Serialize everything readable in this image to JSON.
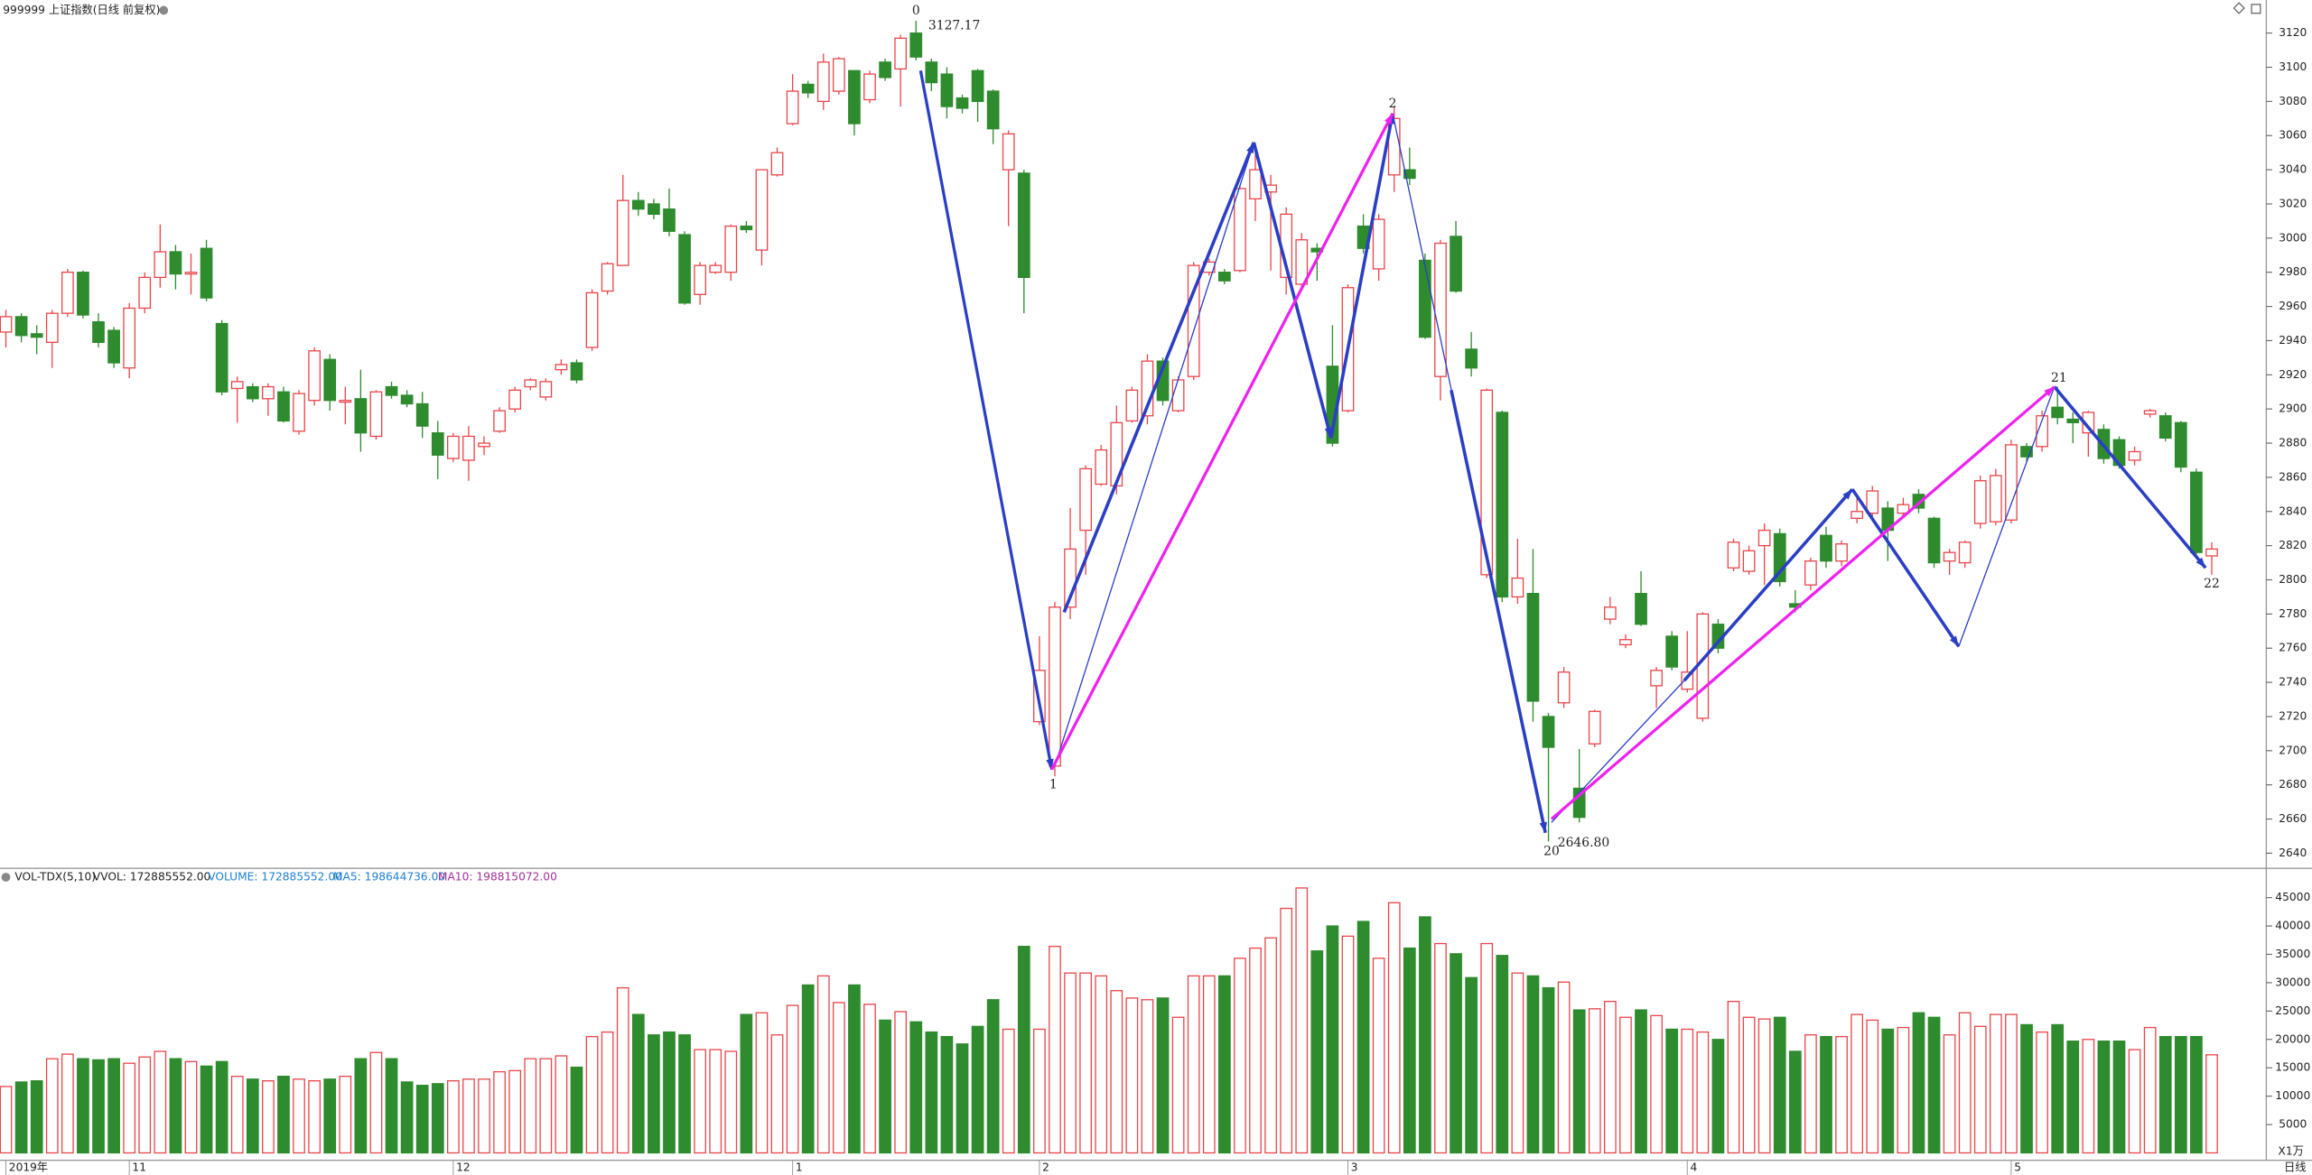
{
  "header": {
    "title": "999999 上证指数(日线 前复权)",
    "period": "日线"
  },
  "chart_data": [
    {
      "type": "candlestick",
      "up_color": "#e8454a",
      "down_color": "#2e8b2e",
      "grid": false,
      "ylim": [
        2632,
        3129
      ],
      "yticks": [
        2640,
        2660,
        2680,
        2700,
        2720,
        2740,
        2760,
        2780,
        2800,
        2820,
        2840,
        2860,
        2880,
        2900,
        2920,
        2940,
        2960,
        2980,
        3000,
        3020,
        3040,
        3060,
        3080,
        3100,
        3120
      ],
      "categories": [
        "2019年",
        null,
        null,
        null,
        null,
        null,
        null,
        null,
        "11",
        null,
        null,
        null,
        null,
        null,
        null,
        null,
        null,
        null,
        null,
        null,
        null,
        null,
        null,
        null,
        null,
        null,
        null,
        null,
        null,
        "12",
        null,
        null,
        null,
        null,
        null,
        null,
        null,
        null,
        null,
        null,
        null,
        null,
        null,
        null,
        null,
        null,
        null,
        null,
        null,
        null,
        null,
        "1",
        null,
        null,
        null,
        null,
        null,
        null,
        null,
        null,
        null,
        null,
        null,
        null,
        null,
        null,
        null,
        "2",
        null,
        null,
        null,
        null,
        null,
        null,
        null,
        null,
        null,
        null,
        null,
        null,
        null,
        null,
        null,
        null,
        null,
        null,
        null,
        "3",
        null,
        null,
        null,
        null,
        null,
        null,
        null,
        null,
        null,
        null,
        null,
        null,
        null,
        null,
        null,
        null,
        null,
        null,
        null,
        null,
        null,
        "4",
        null,
        null,
        null,
        null,
        null,
        null,
        null,
        null,
        null,
        null,
        null,
        null,
        null,
        null,
        null,
        null,
        null,
        null,
        null,
        null,
        "5",
        null,
        null,
        null,
        null,
        null,
        null,
        null,
        null,
        null,
        null,
        null,
        null,
        null
      ],
      "open": [
        2945,
        2954,
        2944,
        2939,
        2956,
        2980,
        2951,
        2946,
        2924,
        2959,
        2977,
        2992,
        2979,
        2994,
        2950,
        2912,
        2913,
        2906,
        2910,
        2887,
        2905,
        2929,
        2904,
        2906,
        2884,
        2913,
        2908,
        2903,
        2886,
        2871,
        2870,
        2878,
        2887,
        2900,
        2913,
        2907,
        2923,
        2927,
        2936,
        2969,
        2984,
        3022,
        3020,
        3017,
        3002,
        2967,
        2980,
        2980,
        3007,
        2993,
        3037,
        3067,
        3090,
        3080,
        3086,
        3098,
        3081,
        3103,
        3099,
        3120,
        3103,
        3096,
        3082,
        3098,
        3086,
        3040,
        3038,
        2717,
        2691,
        2784,
        2829,
        2856,
        2855,
        2893,
        2896,
        2928,
        2899,
        2919,
        2980,
        2980,
        2981,
        3023,
        3027,
        2977,
        2973,
        2994,
        2925,
        2899,
        3007,
        2982,
        3037,
        3040,
        2987,
        2919,
        3001,
        2935,
        2803,
        2898,
        2790,
        2792,
        2720,
        2728,
        2678,
        2704,
        2777,
        2762,
        2792,
        2738,
        2767,
        2736,
        2719,
        2774,
        2807,
        2805,
        2820,
        2827,
        2786,
        2797,
        2826,
        2811,
        2836,
        2839,
        2842,
        2839,
        2850,
        2836,
        2811,
        2810,
        2833,
        2834,
        2835,
        2878,
        2878,
        2901,
        2894,
        2886,
        2888,
        2882,
        2870,
        2897,
        2896,
        2892,
        2863,
        2814
      ],
      "high": [
        2958,
        2956,
        2949,
        2958,
        2982,
        2981,
        2956,
        2948,
        2962,
        2980,
        3008,
        2996,
        2991,
        2999,
        2952,
        2919,
        2915,
        2915,
        2913,
        2911,
        2936,
        2932,
        2913,
        2923,
        2911,
        2916,
        2911,
        2910,
        2893,
        2886,
        2890,
        2884,
        2901,
        2913,
        2918,
        2918,
        2929,
        2929,
        2970,
        2986,
        3037,
        3027,
        3023,
        3029,
        3004,
        2986,
        2986,
        3008,
        3010,
        3040,
        3053,
        3096,
        3092,
        3108,
        3106,
        3098,
        3098,
        3105,
        3119,
        3127.17,
        3105,
        3100,
        3084,
        3099,
        3087,
        3063,
        3040,
        2767,
        2787,
        2842,
        2867,
        2879,
        2902,
        2913,
        2932,
        2930,
        2919,
        2986,
        2988,
        2982,
        3031,
        3055,
        3037,
        3018,
        3003,
        2997,
        2949,
        2973,
        3014,
        3014,
        3077,
        3053,
        2991,
        2999,
        3010,
        2945,
        2912,
        2899,
        2824,
        2818,
        2722,
        2749,
        2701,
        2724,
        2790,
        2768,
        2805,
        2749,
        2770,
        2770,
        2781,
        2777,
        2824,
        2820,
        2833,
        2830,
        2794,
        2813,
        2831,
        2823,
        2850,
        2855,
        2846,
        2848,
        2853,
        2837,
        2818,
        2823,
        2861,
        2865,
        2882,
        2880,
        2899,
        2913,
        2898,
        2899,
        2891,
        2884,
        2878,
        2900,
        2898,
        2893,
        2865,
        2822
      ],
      "low": [
        2936,
        2939,
        2932,
        2924,
        2954,
        2953,
        2936,
        2924,
        2918,
        2956,
        2971,
        2970,
        2967,
        2963,
        2908,
        2892,
        2904,
        2896,
        2892,
        2885,
        2902,
        2899,
        2891,
        2875,
        2882,
        2906,
        2901,
        2883,
        2859,
        2869,
        2858,
        2873,
        2886,
        2898,
        2911,
        2905,
        2920,
        2915,
        2934,
        2967,
        2984,
        3013,
        3011,
        3001,
        2961,
        2961,
        2979,
        2975,
        3003,
        2984,
        3036,
        3066,
        3082,
        3075,
        3084,
        3060,
        3079,
        3092,
        3077,
        3104,
        3086,
        3070,
        3073,
        3068,
        3055,
        3007,
        2956,
        2715,
        2685,
        2777,
        2803,
        2855,
        2850,
        2892,
        2891,
        2902,
        2898,
        2917,
        2978,
        2973,
        2980,
        3010,
        2981,
        2967,
        2971,
        2975,
        2878,
        2898,
        2991,
        2975,
        3027,
        3031,
        2941,
        2905,
        2968,
        2919,
        2801,
        2787,
        2786,
        2717,
        2646.8,
        2725,
        2658,
        2702,
        2774,
        2760,
        2773,
        2725,
        2747,
        2734,
        2717,
        2757,
        2805,
        2803,
        2797,
        2796,
        2781,
        2794,
        2807,
        2808,
        2833,
        2837,
        2811,
        2836,
        2839,
        2807,
        2803,
        2807,
        2830,
        2832,
        2833,
        2869,
        2875,
        2891,
        2880,
        2872,
        2868,
        2865,
        2867,
        2895,
        2881,
        2863,
        2813,
        2803
      ],
      "close": [
        2954,
        2943,
        2942,
        2956,
        2980,
        2955,
        2939,
        2927,
        2959,
        2977,
        2992,
        2979,
        2980,
        2965,
        2910,
        2916,
        2906,
        2913,
        2893,
        2909,
        2934,
        2905,
        2905,
        2886,
        2910,
        2908,
        2903,
        2890,
        2873,
        2884,
        2884,
        2880,
        2899,
        2911,
        2917,
        2916,
        2926,
        2917,
        2968,
        2985,
        3022,
        3017,
        3014,
        3004,
        2962,
        2984,
        2984,
        3007,
        3005,
        3040,
        3050,
        3086,
        3085,
        3103,
        3105,
        3067,
        3096,
        3094,
        3117,
        3106,
        3091,
        3077,
        3076,
        3080,
        3064,
        3061,
        2977,
        2747,
        2784,
        2818,
        2865,
        2876,
        2892,
        2911,
        2928,
        2905,
        2917,
        2984,
        2986,
        2975,
        3029,
        3040,
        3031,
        3014,
        2999,
        2992,
        2880,
        2971,
        2994,
        3011,
        3070,
        3035,
        2942,
        2997,
        2969,
        2924,
        2911,
        2790,
        2801,
        2729,
        2702,
        2746,
        2661,
        2723,
        2784,
        2765,
        2774,
        2747,
        2749,
        2746,
        2780,
        2760,
        2822,
        2817,
        2829,
        2799,
        2784,
        2811,
        2811,
        2821,
        2840,
        2852,
        2829,
        2844,
        2842,
        2810,
        2816,
        2822,
        2858,
        2861,
        2879,
        2872,
        2896,
        2895,
        2892,
        2898,
        2871,
        2867,
        2875,
        2899,
        2883,
        2866,
        2816,
        2818
      ],
      "waves": [
        {
          "from": [
            59.3,
            3098
          ],
          "to": [
            67.8,
            2689
          ],
          "color": "#2b3fc4",
          "width": 2,
          "arrow": true
        },
        {
          "from": [
            68,
            2691
          ],
          "to": [
            80.9,
            3056
          ],
          "color": "#2b3fc4",
          "width": 0.8,
          "arrow": false
        },
        {
          "from": [
            68.6,
            2781
          ],
          "to": [
            80.9,
            3056
          ],
          "color": "#2b3fc4",
          "width": 2.2,
          "arrow": true
        },
        {
          "from": [
            80.9,
            3056
          ],
          "to": [
            85.9,
            2883
          ],
          "color": "#2b3fc4",
          "width": 2.2,
          "arrow": true
        },
        {
          "from": [
            85.9,
            2883
          ],
          "to": [
            89.9,
            3073
          ],
          "color": "#2b3fc4",
          "width": 2.2,
          "arrow": true
        },
        {
          "from": [
            89.9,
            3073
          ],
          "to": [
            99.8,
            2652
          ],
          "color": "#2b3fc4",
          "width": 0.8,
          "arrow": false
        },
        {
          "from": [
            93.7,
            2911
          ],
          "to": [
            99.8,
            2652
          ],
          "color": "#2b3fc4",
          "width": 2.2,
          "arrow": true
        },
        {
          "from": [
            100.2,
            2658
          ],
          "to": [
            108.8,
            2741
          ],
          "color": "#2b3fc4",
          "width": 0.8,
          "arrow": false
        },
        {
          "from": [
            108.8,
            2741
          ],
          "to": [
            119.7,
            2853
          ],
          "color": "#2b3fc4",
          "width": 2.2,
          "arrow": true
        },
        {
          "from": [
            119.7,
            2853
          ],
          "to": [
            126.6,
            2761
          ],
          "color": "#2b3fc4",
          "width": 2.2,
          "arrow": true
        },
        {
          "from": [
            126.6,
            2761
          ],
          "to": [
            132.8,
            2913
          ],
          "color": "#2b3fc4",
          "width": 0.8,
          "arrow": false
        },
        {
          "from": [
            132.8,
            2913
          ],
          "to": [
            142.6,
            2807
          ],
          "color": "#2b3fc4",
          "width": 2.2,
          "arrow": true
        },
        {
          "from": [
            67.8,
            2689
          ],
          "to": [
            89.9,
            3073
          ],
          "color": "#ee22ee",
          "width": 2,
          "arrow": true
        },
        {
          "from": [
            100.2,
            2660
          ],
          "to": [
            132.8,
            2913
          ],
          "color": "#ee22ee",
          "width": 2,
          "arrow": true
        }
      ],
      "annotations": [
        {
          "text": "0",
          "x": 59,
          "y": 3133,
          "align": "middle"
        },
        {
          "text": "1",
          "x": 67.9,
          "y": 2680,
          "align": "middle"
        },
        {
          "text": "2",
          "x": 89.9,
          "y": 3078.6,
          "align": "middle"
        },
        {
          "text": "20",
          "x": 100.2,
          "y": 2641,
          "align": "middle"
        },
        {
          "text": "21",
          "x": 133.1,
          "y": 2918,
          "align": "middle"
        },
        {
          "text": "22",
          "x": 143,
          "y": 2797.7,
          "align": "middle"
        },
        {
          "text": "3127.17",
          "x": 59.8,
          "y": 3124.3,
          "align": "start"
        },
        {
          "text": "2646.80",
          "x": 100.6,
          "y": 2646,
          "align": "start"
        }
      ]
    },
    {
      "type": "bar",
      "indicator": "VOL-TDX(5,10)",
      "vvol": "VVOL: 172885552.00",
      "unit": "X1万",
      "legend": [
        {
          "text": "VOLUME: 172885552.00",
          "color": "#1e7fd0"
        },
        {
          "text": "MA5: 198644736.00",
          "color": "#1e7fd0"
        },
        {
          "text": "MA10: 198815072.00",
          "color": "#a0309a"
        }
      ],
      "ylim": [
        0,
        47300
      ],
      "yticks": [
        5000,
        10000,
        15000,
        20000,
        25000,
        30000,
        35000,
        40000,
        45000
      ],
      "values": [
        11700,
        12500,
        12700,
        16600,
        17400,
        16600,
        16400,
        16600,
        15800,
        16900,
        17900,
        16600,
        16100,
        15300,
        16100,
        13500,
        13000,
        12700,
        13500,
        13000,
        12700,
        13000,
        13500,
        16600,
        17700,
        16600,
        12500,
        11900,
        12200,
        12700,
        13000,
        13000,
        14300,
        14500,
        16600,
        16600,
        17100,
        15100,
        20500,
        21300,
        29100,
        24400,
        20800,
        21300,
        20800,
        18200,
        18200,
        17900,
        24400,
        24700,
        20800,
        26000,
        29600,
        31200,
        26500,
        29600,
        26200,
        23400,
        24900,
        23100,
        21300,
        20500,
        19200,
        22300,
        27000,
        21800,
        36400,
        21800,
        36400,
        31700,
        31700,
        31200,
        28600,
        27300,
        27000,
        27300,
        23900,
        31200,
        31200,
        31200,
        34300,
        36100,
        37900,
        43100,
        46700,
        35600,
        40000,
        38200,
        40800,
        34300,
        44100,
        36100,
        41600,
        36900,
        35100,
        30900,
        36900,
        34800,
        31700,
        31200,
        29100,
        30100,
        25200,
        25400,
        26700,
        23900,
        25200,
        24200,
        21800,
        21800,
        21300,
        20000,
        26700,
        23900,
        23600,
        23900,
        17900,
        20800,
        20500,
        20500,
        24400,
        23400,
        21800,
        22100,
        24700,
        23900,
        20800,
        24700,
        22300,
        24400,
        24400,
        22600,
        21300,
        22600,
        19700,
        20000,
        19700,
        19700,
        18200,
        22100,
        20500,
        20500,
        20500,
        17288.5552
      ]
    }
  ]
}
